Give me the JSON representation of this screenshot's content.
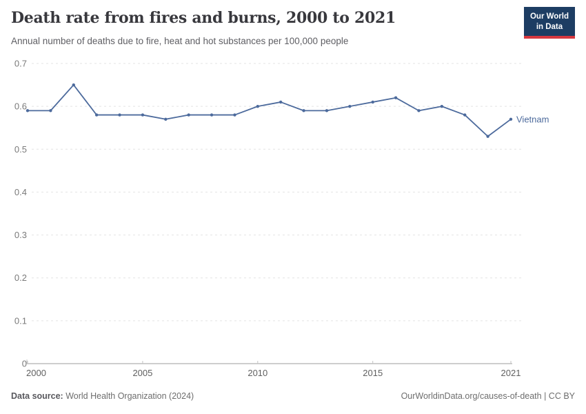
{
  "header": {
    "title": "Death rate from fires and burns, 2000 to 2021",
    "subtitle": "Annual number of deaths due to fire, heat and hot substances per 100,000 people",
    "logo": {
      "line1": "Our World",
      "line2": "in Data",
      "bg_color": "#1d3d63",
      "accent_color": "#d7383f",
      "text_color": "#ffffff"
    }
  },
  "chart_data": {
    "type": "line",
    "title": "Death rate from fires and burns, 2000 to 2021",
    "subtitle": "Annual number of deaths due to fire, heat and hot substances per 100,000 people",
    "xlabel": "",
    "ylabel": "",
    "x": [
      2000,
      2001,
      2002,
      2003,
      2004,
      2005,
      2006,
      2007,
      2008,
      2009,
      2010,
      2011,
      2012,
      2013,
      2014,
      2015,
      2016,
      2017,
      2018,
      2019,
      2020,
      2021
    ],
    "series": [
      {
        "name": "Vietnam",
        "color": "#4c6a9c",
        "values": [
          0.59,
          0.59,
          0.65,
          0.58,
          0.58,
          0.58,
          0.57,
          0.58,
          0.58,
          0.58,
          0.6,
          0.61,
          0.59,
          0.59,
          0.6,
          0.61,
          0.62,
          0.59,
          0.6,
          0.58,
          0.53,
          0.57
        ]
      }
    ],
    "xlim": [
      2000,
      2021
    ],
    "ylim": [
      0,
      0.7
    ],
    "xticks": [
      2000,
      2005,
      2010,
      2015,
      2021
    ],
    "yticks": [
      0,
      0.1,
      0.2,
      0.3,
      0.4,
      0.5,
      0.6,
      0.7
    ],
    "grid": true,
    "grid_color": "#e3e3e3",
    "axis_color": "#9e9e9e",
    "tick_color": "#c2c2c2",
    "y_label_color": "#7a7a7a",
    "x_label_color": "#5f5f5f",
    "legend_position": "end-of-line"
  },
  "footer": {
    "source_label": "Data source:",
    "source_value": "World Health Organization (2024)",
    "attribution": "OurWorldinData.org/causes-of-death | CC BY"
  }
}
